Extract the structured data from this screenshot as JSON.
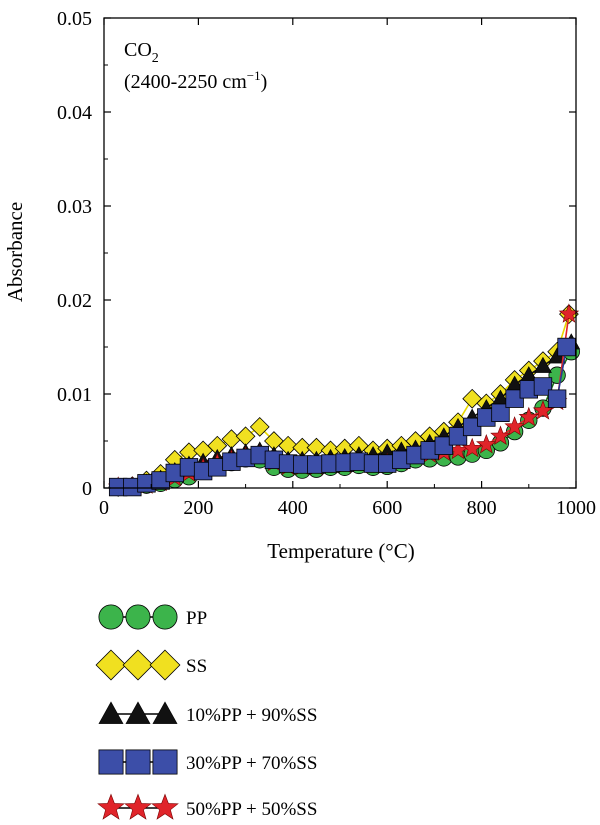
{
  "chart_data": {
    "type": "scatter",
    "title": "",
    "annotation_line1": "CO",
    "annotation_sub": "2",
    "annotation_line2": "(2400-2250 cm",
    "annotation_sup": "−1",
    "annotation_close": ")",
    "xlabel": "Temperature (°C)",
    "ylabel": "Absorbance",
    "xlim": [
      0,
      1000
    ],
    "ylim": [
      0,
      0.05
    ],
    "xticks": [
      "0",
      "200",
      "400",
      "600",
      "800",
      "1000"
    ],
    "yticks": [
      "0",
      "0.01",
      "0.02",
      "0.03",
      "0.04",
      "0.05"
    ],
    "grid": false,
    "legend_position": "below",
    "series": [
      {
        "name": "PP",
        "marker": "circle",
        "color": "#3cb44b",
        "line_color": "#1a7a1a",
        "x": [
          30,
          60,
          90,
          120,
          150,
          180,
          210,
          240,
          270,
          300,
          330,
          360,
          390,
          420,
          450,
          480,
          510,
          540,
          570,
          600,
          630,
          660,
          690,
          720,
          750,
          780,
          810,
          840,
          870,
          900,
          930,
          960,
          990
        ],
        "y": [
          0.0001,
          0.0001,
          0.0003,
          0.0005,
          0.0009,
          0.0012,
          0.0018,
          0.0023,
          0.0027,
          0.0031,
          0.003,
          0.0022,
          0.002,
          0.0019,
          0.002,
          0.0022,
          0.0022,
          0.0024,
          0.0022,
          0.0023,
          0.0026,
          0.003,
          0.0031,
          0.0032,
          0.0033,
          0.0036,
          0.004,
          0.0048,
          0.006,
          0.0072,
          0.0085,
          0.012,
          0.0145
        ]
      },
      {
        "name": "SS",
        "marker": "diamond",
        "color": "#f0e020",
        "line_color": "#e8d800",
        "x": [
          30,
          60,
          90,
          120,
          150,
          180,
          210,
          240,
          270,
          300,
          330,
          360,
          390,
          420,
          450,
          480,
          510,
          540,
          570,
          600,
          630,
          660,
          690,
          720,
          750,
          780,
          810,
          840,
          870,
          900,
          930,
          960,
          985
        ],
        "y": [
          0.0001,
          0.0002,
          0.0008,
          0.0015,
          0.003,
          0.0038,
          0.004,
          0.0045,
          0.0052,
          0.0055,
          0.0065,
          0.005,
          0.0045,
          0.0043,
          0.0043,
          0.004,
          0.0042,
          0.0045,
          0.004,
          0.0042,
          0.0045,
          0.005,
          0.0055,
          0.006,
          0.007,
          0.0095,
          0.009,
          0.01,
          0.0115,
          0.0125,
          0.0135,
          0.0145,
          0.0185
        ]
      },
      {
        "name": "10%PP + 90%SS",
        "marker": "triangle",
        "color": "#111111",
        "line_color": "#111111",
        "x": [
          30,
          60,
          90,
          120,
          150,
          180,
          210,
          240,
          270,
          300,
          330,
          360,
          390,
          420,
          450,
          480,
          510,
          540,
          570,
          600,
          630,
          660,
          690,
          720,
          750,
          780,
          810,
          840,
          870,
          900,
          930,
          960,
          990
        ],
        "y": [
          0.0001,
          0.0002,
          0.0006,
          0.001,
          0.0018,
          0.0025,
          0.0028,
          0.0032,
          0.0035,
          0.0038,
          0.004,
          0.0035,
          0.003,
          0.003,
          0.003,
          0.0032,
          0.0033,
          0.0035,
          0.0035,
          0.0038,
          0.004,
          0.0042,
          0.0048,
          0.0055,
          0.0065,
          0.0075,
          0.0085,
          0.0095,
          0.011,
          0.012,
          0.013,
          0.014,
          0.0155
        ]
      },
      {
        "name": "30%PP + 70%SS",
        "marker": "square",
        "color": "#3c4ea8",
        "line_color": "#2a3a90",
        "x": [
          30,
          60,
          90,
          120,
          150,
          180,
          210,
          240,
          270,
          300,
          330,
          360,
          390,
          420,
          450,
          480,
          510,
          540,
          570,
          600,
          630,
          660,
          690,
          720,
          750,
          780,
          810,
          840,
          870,
          900,
          930,
          960,
          980
        ],
        "y": [
          0.0001,
          0.0001,
          0.0005,
          0.0008,
          0.0016,
          0.0022,
          0.0018,
          0.0022,
          0.0028,
          0.0032,
          0.0035,
          0.003,
          0.0026,
          0.0025,
          0.0025,
          0.0026,
          0.0027,
          0.0028,
          0.0026,
          0.0026,
          0.003,
          0.0035,
          0.004,
          0.0045,
          0.0055,
          0.0065,
          0.0075,
          0.008,
          0.0095,
          0.0105,
          0.0108,
          0.0095,
          0.015
        ]
      },
      {
        "name": "50%PP + 50%SS",
        "marker": "star",
        "color": "#e0242a",
        "line_color": "#e0242a",
        "x": [
          30,
          60,
          90,
          120,
          150,
          180,
          210,
          240,
          270,
          300,
          330,
          360,
          390,
          420,
          450,
          480,
          510,
          540,
          570,
          600,
          630,
          660,
          690,
          720,
          750,
          780,
          810,
          840,
          870,
          900,
          930,
          960,
          985
        ],
        "y": [
          0.0001,
          0.0001,
          0.0003,
          0.0006,
          0.0011,
          0.0016,
          0.0021,
          0.0026,
          0.003,
          0.0033,
          0.0035,
          0.0027,
          0.0023,
          0.0023,
          0.0023,
          0.0025,
          0.0025,
          0.0026,
          0.0025,
          0.0026,
          0.0028,
          0.0034,
          0.0036,
          0.0038,
          0.004,
          0.0042,
          0.0046,
          0.0055,
          0.0065,
          0.0075,
          0.0082,
          0.0092,
          0.0185
        ]
      }
    ]
  }
}
